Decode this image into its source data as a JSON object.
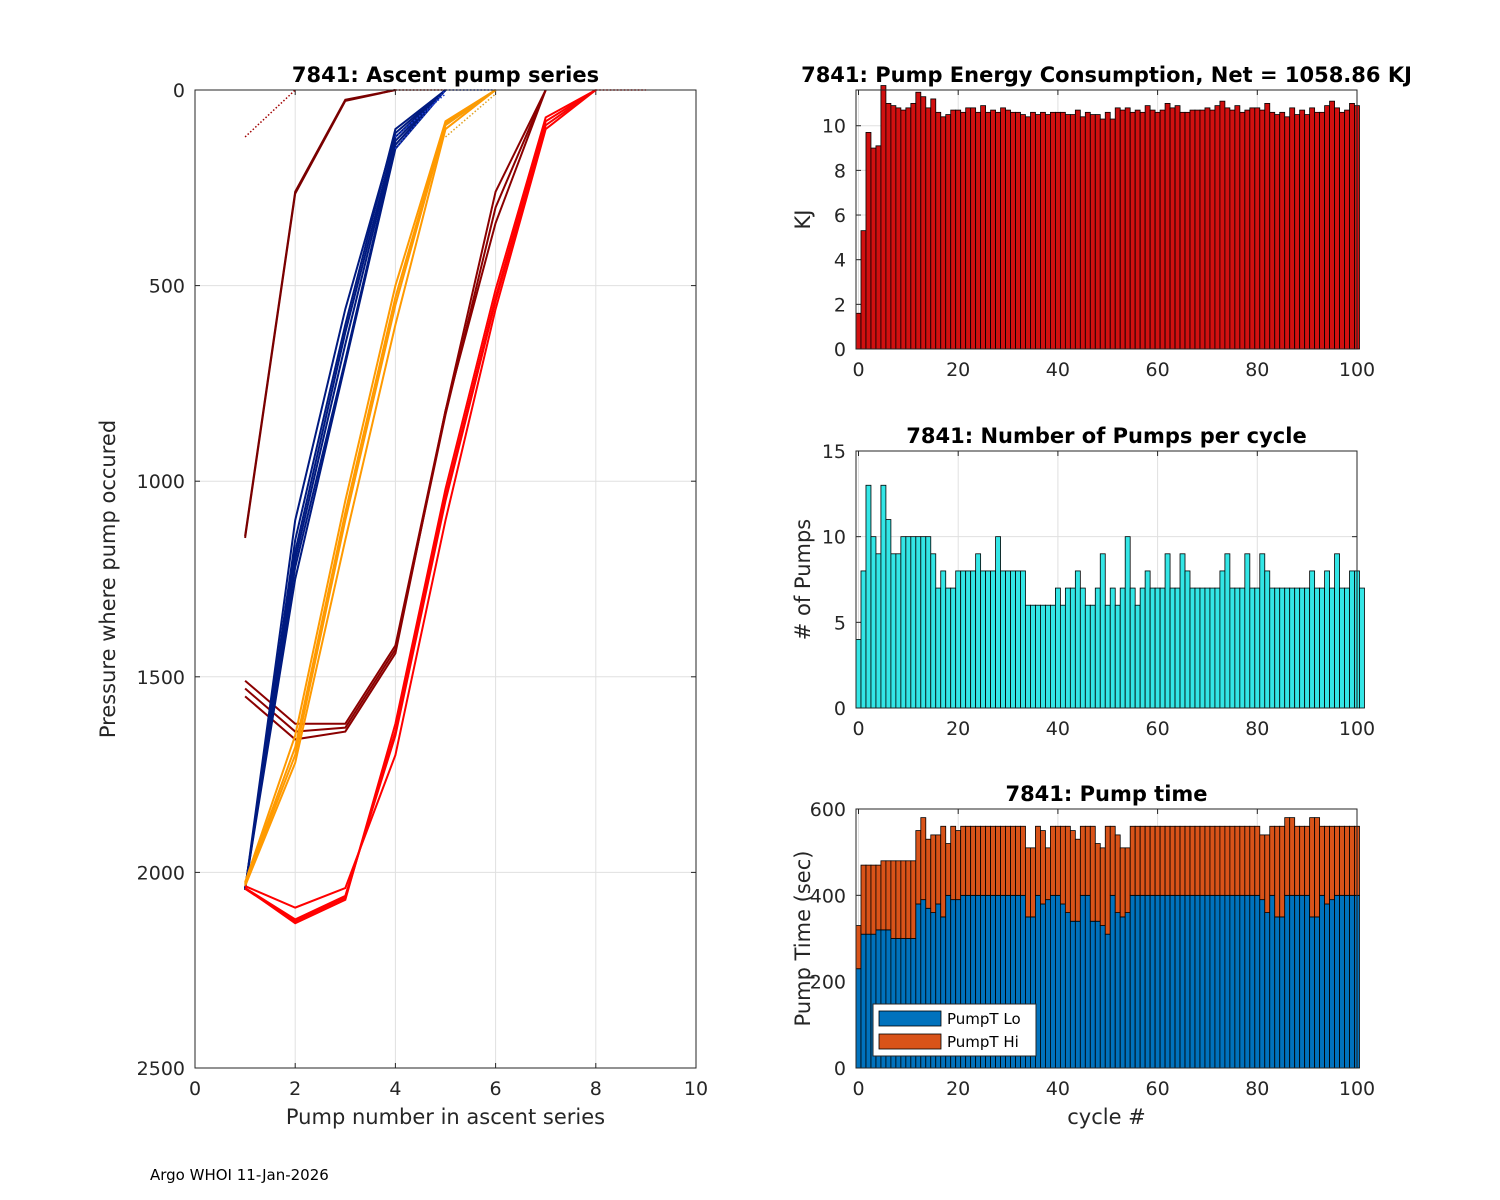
{
  "footer": "Argo WHOI 11-Jan-2026",
  "colors": {
    "energy_bar": "#d11010",
    "pumps_bar": "#33e6e6",
    "pump_lo": "#0072bd",
    "pump_hi": "#d95319",
    "grid": "#e0e0e0",
    "axis": "#262626"
  },
  "chart_data": [
    {
      "id": "ascent",
      "type": "line",
      "title": "7841: Ascent pump series",
      "xlabel": "Pump number in ascent series",
      "ylabel": "Pressure where pump occured",
      "xlim": [
        0,
        10
      ],
      "ylim": [
        2500,
        0
      ],
      "y_reversed": true,
      "xticks": [
        "0",
        "2",
        "4",
        "6",
        "8",
        "10"
      ],
      "yticks": [
        "0",
        "500",
        "1000",
        "1500",
        "2000",
        "2500"
      ],
      "grid": true,
      "groups": [
        {
          "name": "early-shallow",
          "color": "#7a0000",
          "dotted_color": "#a00000",
          "paths": [
            [
              [
                1,
                1140
              ],
              [
                2,
                260
              ],
              [
                3,
                25
              ],
              [
                4,
                0
              ]
            ],
            [
              [
                1,
                1145
              ],
              [
                2,
                265
              ],
              [
                3,
                28
              ],
              [
                4,
                0
              ]
            ]
          ],
          "dotted": [
            [
              [
                1,
                120
              ],
              [
                2,
                0
              ]
            ],
            [
              [
                4,
                0
              ],
              [
                5,
                0
              ]
            ]
          ]
        },
        {
          "name": "early-deep",
          "color": "#8b0000",
          "dotted_color": "#a00000",
          "paths": [
            [
              [
                1,
                1510
              ],
              [
                2,
                1620
              ],
              [
                3,
                1620
              ],
              [
                4,
                1420
              ],
              [
                5,
                820
              ],
              [
                6,
                340
              ],
              [
                7,
                0
              ]
            ],
            [
              [
                1,
                1550
              ],
              [
                2,
                1660
              ],
              [
                3,
                1640
              ],
              [
                4,
                1440
              ],
              [
                5,
                820
              ],
              [
                6,
                260
              ],
              [
                7,
                0
              ]
            ],
            [
              [
                1,
                1530
              ],
              [
                2,
                1640
              ],
              [
                3,
                1630
              ],
              [
                4,
                1430
              ],
              [
                5,
                830
              ],
              [
                6,
                300
              ],
              [
                7,
                0
              ]
            ]
          ],
          "dotted": []
        },
        {
          "name": "blue",
          "color": "#001a80",
          "dotted_color": "#1f3fd0",
          "paths": [
            [
              [
                1,
                2040
              ],
              [
                2,
                1200
              ],
              [
                3,
                650
              ],
              [
                4,
                130
              ],
              [
                5,
                0
              ]
            ],
            [
              [
                1,
                2045
              ],
              [
                2,
                1100
              ],
              [
                3,
                560
              ],
              [
                4,
                110
              ],
              [
                5,
                0
              ]
            ],
            [
              [
                1,
                2040
              ],
              [
                2,
                1250
              ],
              [
                3,
                700
              ],
              [
                4,
                150
              ],
              [
                5,
                0
              ]
            ],
            [
              [
                1,
                2043
              ],
              [
                2,
                1180
              ],
              [
                3,
                620
              ],
              [
                4,
                120
              ],
              [
                5,
                0
              ]
            ],
            [
              [
                1,
                2041
              ],
              [
                2,
                1220
              ],
              [
                3,
                690
              ],
              [
                4,
                140
              ],
              [
                5,
                0
              ]
            ],
            [
              [
                1,
                2044
              ],
              [
                2,
                1150
              ],
              [
                3,
                600
              ],
              [
                4,
                100
              ],
              [
                5,
                0
              ]
            ]
          ],
          "dotted": [
            [
              [
                5,
                0
              ],
              [
                6,
                0
              ]
            ],
            [
              [
                4,
                120
              ],
              [
                5,
                10
              ]
            ],
            [
              [
                4,
                150
              ],
              [
                5,
                0
              ]
            ]
          ]
        },
        {
          "name": "orange",
          "color": "#ff9a00",
          "dotted_color": "#e0a020",
          "paths": [
            [
              [
                1,
                2030
              ],
              [
                2,
                1700
              ],
              [
                3,
                1100
              ],
              [
                4,
                550
              ],
              [
                5,
                90
              ],
              [
                6,
                0
              ]
            ],
            [
              [
                1,
                2025
              ],
              [
                2,
                1650
              ],
              [
                3,
                1050
              ],
              [
                4,
                500
              ],
              [
                5,
                80
              ],
              [
                6,
                0
              ]
            ],
            [
              [
                1,
                2035
              ],
              [
                2,
                1720
              ],
              [
                3,
                1150
              ],
              [
                4,
                600
              ],
              [
                5,
                100
              ],
              [
                6,
                0
              ]
            ],
            [
              [
                1,
                2028
              ],
              [
                2,
                1680
              ],
              [
                3,
                1080
              ],
              [
                4,
                530
              ],
              [
                5,
                85
              ],
              [
                6,
                0
              ]
            ]
          ],
          "dotted": [
            [
              [
                5,
                90
              ],
              [
                6,
                0
              ]
            ],
            [
              [
                5,
                120
              ],
              [
                6,
                10
              ]
            ]
          ]
        },
        {
          "name": "red",
          "color": "#ff0000",
          "dotted_color": "#e01010",
          "paths": [
            [
              [
                1,
                2040
              ],
              [
                2,
                2120
              ],
              [
                3,
                2060
              ],
              [
                4,
                1650
              ],
              [
                5,
                1050
              ],
              [
                6,
                540
              ],
              [
                7,
                90
              ],
              [
                8,
                0
              ]
            ],
            [
              [
                1,
                2040
              ],
              [
                2,
                2130
              ],
              [
                3,
                2070
              ],
              [
                4,
                1620
              ],
              [
                5,
                1020
              ],
              [
                6,
                510
              ],
              [
                7,
                70
              ],
              [
                8,
                0
              ]
            ],
            [
              [
                1,
                2035
              ],
              [
                2,
                2090
              ],
              [
                3,
                2040
              ],
              [
                4,
                1700
              ],
              [
                5,
                1100
              ],
              [
                6,
                560
              ],
              [
                7,
                100
              ],
              [
                8,
                0
              ]
            ],
            [
              [
                1,
                2042
              ],
              [
                2,
                2125
              ],
              [
                3,
                2065
              ],
              [
                4,
                1640
              ],
              [
                5,
                1040
              ],
              [
                6,
                530
              ],
              [
                7,
                80
              ],
              [
                8,
                0
              ]
            ]
          ],
          "dotted": [
            [
              [
                8,
                0
              ],
              [
                9,
                0
              ]
            ],
            [
              [
                7,
                90
              ],
              [
                8,
                0
              ]
            ]
          ]
        }
      ]
    },
    {
      "id": "energy",
      "type": "bar",
      "title": "7841: Pump Energy Consumption,  Net = 1058.86 KJ",
      "xlabel": "",
      "ylabel": "KJ",
      "xlim": [
        -0.5,
        100
      ],
      "ylim": [
        0,
        11.6
      ],
      "xticks": [
        "0",
        "20",
        "40",
        "60",
        "80",
        "100"
      ],
      "yticks": [
        "0",
        "2",
        "4",
        "6",
        "8",
        "10"
      ],
      "grid": true,
      "x_start": 0,
      "values": [
        1.6,
        5.3,
        9.7,
        9.0,
        9.1,
        11.8,
        11.0,
        10.9,
        10.8,
        10.7,
        10.8,
        11.0,
        11.5,
        11.3,
        10.8,
        11.2,
        10.6,
        10.4,
        10.5,
        10.7,
        10.7,
        10.6,
        10.8,
        10.8,
        10.6,
        10.9,
        10.6,
        10.7,
        10.6,
        10.8,
        10.7,
        10.6,
        10.6,
        10.5,
        10.4,
        10.6,
        10.5,
        10.6,
        10.5,
        10.6,
        10.6,
        10.6,
        10.5,
        10.5,
        10.7,
        10.4,
        10.6,
        10.5,
        10.5,
        10.3,
        10.6,
        10.3,
        10.8,
        10.7,
        10.8,
        10.6,
        10.7,
        10.6,
        10.9,
        10.7,
        10.6,
        10.7,
        11.0,
        10.8,
        10.9,
        10.6,
        10.6,
        10.7,
        10.7,
        10.7,
        10.8,
        10.7,
        10.9,
        11.1,
        10.8,
        10.7,
        10.9,
        10.6,
        10.7,
        10.8,
        10.8,
        10.7,
        11.0,
        10.6,
        10.5,
        10.6,
        10.4,
        10.8,
        10.5,
        10.7,
        10.5,
        10.8,
        10.6,
        10.6,
        10.9,
        11.1,
        10.8,
        10.6,
        10.7,
        11.0,
        10.9
      ]
    },
    {
      "id": "pumps",
      "type": "bar",
      "title": "7841: Number of Pumps per cycle",
      "xlabel": "",
      "ylabel": "# of Pumps",
      "xlim": [
        -0.5,
        100
      ],
      "ylim": [
        0,
        15
      ],
      "xticks": [
        "0",
        "20",
        "40",
        "60",
        "80",
        "100"
      ],
      "yticks": [
        "0",
        "5",
        "10",
        "15"
      ],
      "grid": true,
      "x_start": 0,
      "values": [
        4,
        8,
        13,
        10,
        9,
        13,
        11,
        9,
        9,
        10,
        10,
        10,
        10,
        10,
        10,
        9,
        7,
        8,
        7,
        7,
        8,
        8,
        8,
        8,
        9,
        8,
        8,
        8,
        10,
        8,
        8,
        8,
        8,
        8,
        6,
        6,
        6,
        6,
        6,
        6,
        7,
        6,
        7,
        7,
        8,
        7,
        6,
        6,
        7,
        9,
        6,
        7,
        6,
        7,
        10,
        7,
        6,
        7,
        8,
        7,
        7,
        7,
        9,
        7,
        7,
        9,
        8,
        7,
        7,
        7,
        7,
        7,
        7,
        8,
        9,
        7,
        7,
        7,
        9,
        7,
        7,
        9,
        8,
        7,
        7,
        7,
        7,
        7,
        7,
        7,
        7,
        8,
        7,
        7,
        8,
        7,
        9,
        7,
        7,
        8,
        8,
        7
      ]
    },
    {
      "id": "pumptime",
      "type": "bar",
      "stacked": true,
      "title": "7841: Pump time",
      "xlabel": "cycle #",
      "ylabel": "Pump Time (sec)",
      "xlim": [
        -0.5,
        100
      ],
      "ylim": [
        0,
        600
      ],
      "xticks": [
        "0",
        "20",
        "40",
        "60",
        "80",
        "100"
      ],
      "yticks": [
        "0",
        "200",
        "400",
        "600"
      ],
      "grid": true,
      "x_start": 0,
      "legend": {
        "position": "bottom-left",
        "entries": [
          "PumpT Lo",
          "PumpT Hi"
        ]
      },
      "series": [
        {
          "name": "PumpT Lo",
          "values": [
            230,
            310,
            310,
            310,
            320,
            320,
            320,
            300,
            300,
            300,
            300,
            300,
            380,
            390,
            370,
            360,
            380,
            350,
            400,
            390,
            390,
            400,
            400,
            400,
            400,
            400,
            400,
            400,
            400,
            400,
            400,
            400,
            400,
            400,
            350,
            350,
            400,
            380,
            390,
            400,
            400,
            380,
            360,
            340,
            340,
            400,
            400,
            340,
            340,
            330,
            310,
            400,
            360,
            350,
            360,
            400,
            400,
            400,
            400,
            400,
            400,
            400,
            400,
            400,
            400,
            400,
            400,
            400,
            400,
            400,
            400,
            400,
            400,
            400,
            400,
            400,
            400,
            400,
            400,
            400,
            400,
            390,
            360,
            400,
            350,
            350,
            400,
            400,
            400,
            400,
            400,
            350,
            350,
            400,
            380,
            390,
            400,
            400,
            400,
            400,
            400
          ]
        },
        {
          "name": "PumpT Hi",
          "values": [
            100,
            160,
            160,
            160,
            150,
            160,
            160,
            180,
            180,
            180,
            180,
            180,
            170,
            190,
            160,
            180,
            160,
            210,
            120,
            170,
            160,
            160,
            160,
            160,
            160,
            160,
            160,
            160,
            160,
            160,
            160,
            160,
            160,
            160,
            160,
            160,
            160,
            170,
            120,
            160,
            160,
            180,
            200,
            210,
            190,
            160,
            160,
            220,
            180,
            180,
            250,
            160,
            180,
            160,
            150,
            160,
            160,
            160,
            160,
            160,
            160,
            160,
            160,
            160,
            160,
            160,
            160,
            160,
            160,
            160,
            160,
            160,
            160,
            160,
            160,
            160,
            160,
            160,
            160,
            160,
            160,
            150,
            180,
            160,
            210,
            210,
            180,
            180,
            160,
            160,
            160,
            230,
            230,
            160,
            180,
            170,
            160,
            160,
            160,
            160,
            160
          ]
        }
      ]
    }
  ]
}
